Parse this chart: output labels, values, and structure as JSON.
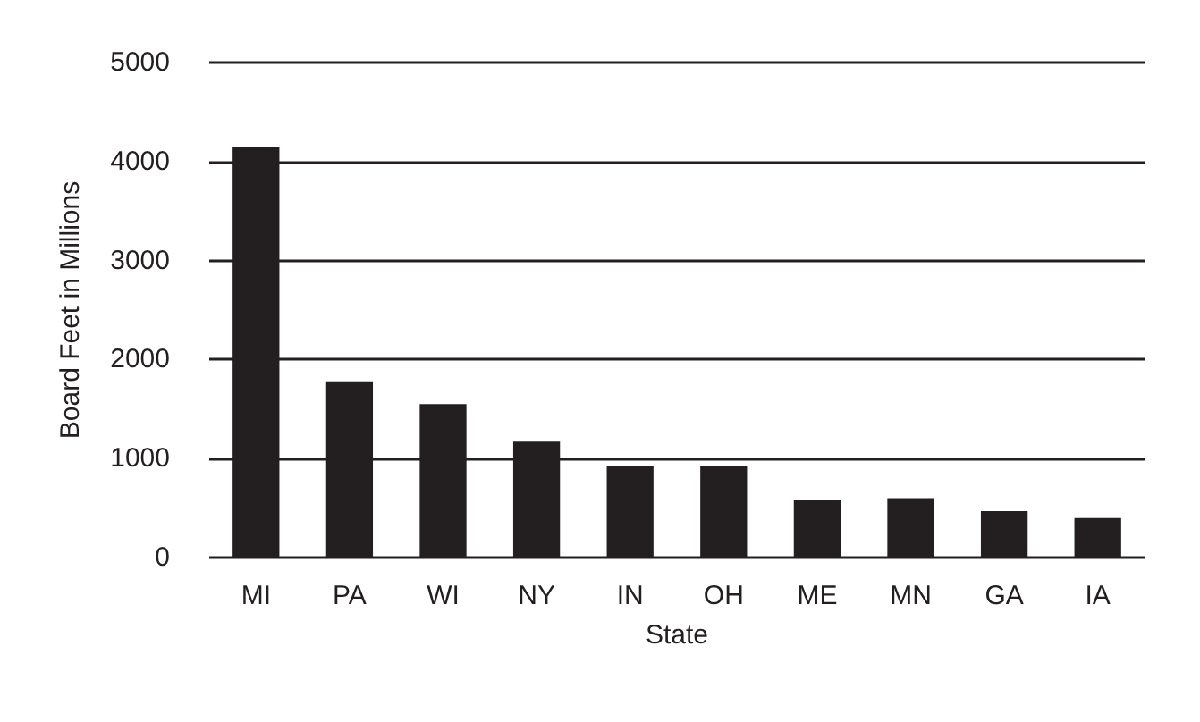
{
  "chart_data": {
    "type": "bar",
    "xlabel": "State",
    "ylabel": "Board Feet in Millions",
    "categories": [
      "MI",
      "PA",
      "WI",
      "NY",
      "IN",
      "OH",
      "ME",
      "MN",
      "GA",
      "IA"
    ],
    "values": [
      4150,
      1780,
      1550,
      1170,
      920,
      920,
      580,
      600,
      470,
      400
    ],
    "color": "#231f20",
    "ylim": [
      0,
      5000
    ],
    "yticks": [
      0,
      1000,
      2000,
      3000,
      4000,
      5000
    ],
    "grid": "y"
  }
}
